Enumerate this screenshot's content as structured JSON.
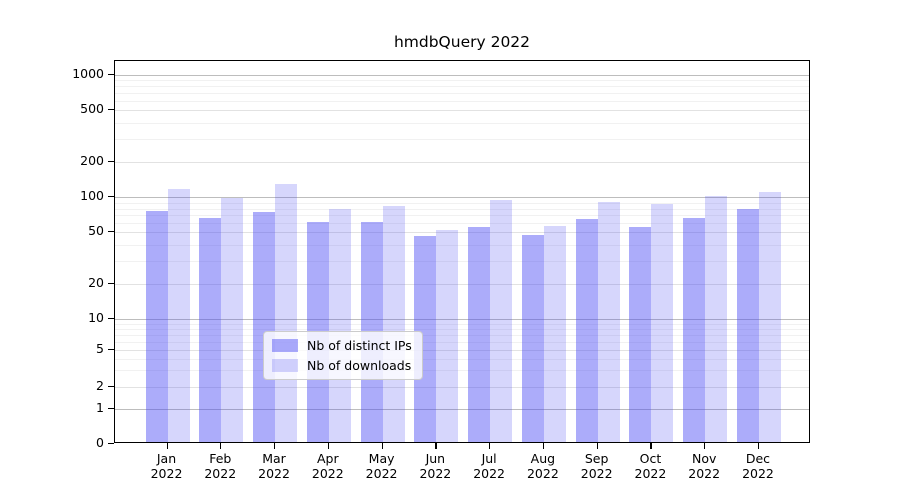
{
  "title": "hmdbQuery 2022",
  "x_axis": {
    "months": [
      "Jan",
      "Feb",
      "Mar",
      "Apr",
      "May",
      "Jun",
      "Jul",
      "Aug",
      "Sep",
      "Oct",
      "Nov",
      "Dec"
    ],
    "year": "2022"
  },
  "y_axis": {
    "ticks": [
      0,
      1,
      2,
      5,
      10,
      20,
      50,
      100,
      200,
      500,
      1000
    ]
  },
  "colors": {
    "distinct_ips_bar": "rgba(70,70,243,0.45)",
    "downloads_bar": "rgba(70,70,243,0.22)",
    "major_gridline": "#bdbdbd",
    "minor_gridline": "#f1f1f1",
    "axis": "#000000"
  },
  "chart_data": {
    "type": "bar",
    "title": "hmdbQuery 2022",
    "categories": [
      "Jan 2022",
      "Feb 2022",
      "Mar 2022",
      "Apr 2022",
      "May 2022",
      "Jun 2022",
      "Jul 2022",
      "Aug 2022",
      "Sep 2022",
      "Oct 2022",
      "Nov 2022",
      "Dec 2022"
    ],
    "series": [
      {
        "name": "Nb of distinct IPs",
        "color": "rgba(70,70,243,0.45)",
        "values": [
          76,
          66,
          75,
          61,
          61,
          47,
          55,
          48,
          65,
          56,
          66,
          80
        ]
      },
      {
        "name": "Nb of downloads",
        "color": "rgba(70,70,243,0.22)",
        "values": [
          117,
          99,
          131,
          79,
          85,
          52,
          94,
          57,
          92,
          88,
          102,
          112
        ]
      }
    ],
    "xlabel": "",
    "ylabel": "",
    "yscale": "symlog",
    "yticks": [
      0,
      1,
      2,
      5,
      10,
      20,
      50,
      100,
      200,
      500,
      1000
    ],
    "ylim": [
      0,
      1300
    ],
    "grid": true,
    "legend_position": "lower center"
  }
}
